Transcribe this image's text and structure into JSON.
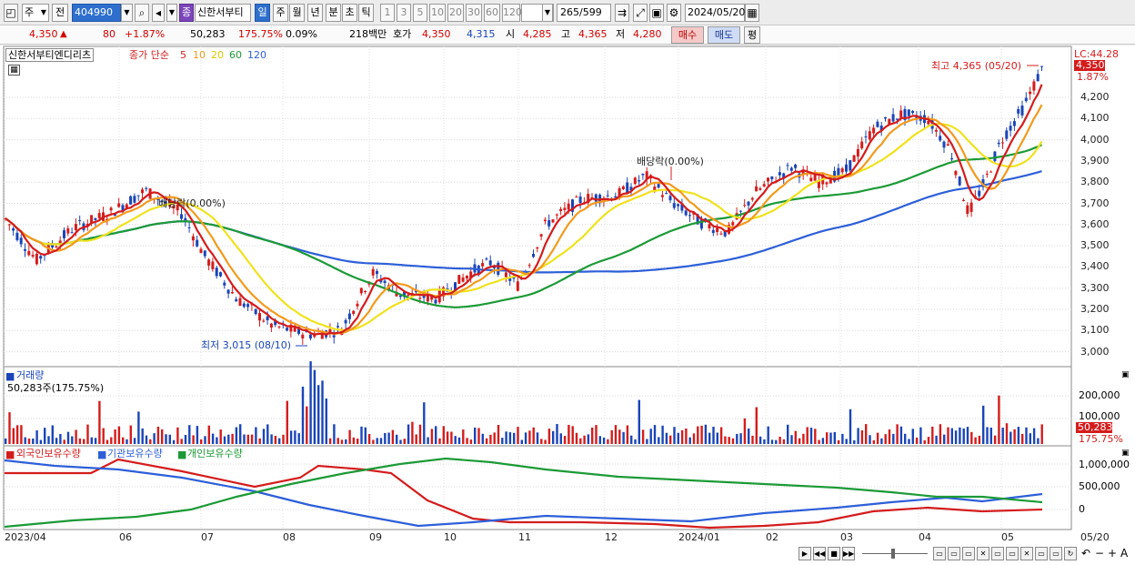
{
  "toolbar": {
    "period_type": "주",
    "prev_label": "전",
    "stock_code": "404990",
    "stock_badge": "종",
    "stock_name": "신한서부티",
    "period_buttons": [
      "일",
      "주",
      "월",
      "년",
      "분",
      "초",
      "틱"
    ],
    "interval_buttons": [
      "1",
      "3",
      "5",
      "10",
      "20",
      "30",
      "60",
      "120"
    ],
    "count_value": "265",
    "count_total": "/599",
    "date_value": "2024/05/20"
  },
  "quote": {
    "price": "4,350",
    "change_arrow": "▲",
    "change": "80",
    "change_pct": "+1.87%",
    "volume": "50,283",
    "volume_ratio": "175.75%",
    "turnover_ratio": "0.09%",
    "amount": "218백만",
    "ask_label": "호가",
    "ask_price": "4,350",
    "bid_price": "4,315",
    "open_label": "시",
    "open": "4,285",
    "high_label": "고",
    "high": "4,365",
    "low_label": "저",
    "low": "4,280",
    "buy_label": "매수",
    "sell_label": "매도",
    "extra_label": "평"
  },
  "price_panel": {
    "name": "신한서부티엔디리츠",
    "ma_title": "종가 단순",
    "ma_periods": [
      "5",
      "10",
      "20",
      "60",
      "120"
    ],
    "ma_colors": [
      "#d41c1c",
      "#f39a1d",
      "#f0e21e",
      "#1c9a36",
      "#2d5fd8"
    ],
    "lc_label": "LC:44.28",
    "current_price_badge": "4,350",
    "current_change_badge": "1.87%",
    "high_annotation": "최고 4,365 (05/20)",
    "low_annotation": "최저 3,015 (08/10)",
    "dividend_label_1": "배당락(0.00%)",
    "dividend_label_2": "배당락(0.00%)",
    "y_ticks": [
      "4,200",
      "4,100",
      "4,000",
      "3,900",
      "3,800",
      "3,700",
      "3,600",
      "3,500",
      "3,400",
      "3,300",
      "3,200",
      "3,100",
      "3,000"
    ]
  },
  "volume_panel": {
    "title": "거래량",
    "value_text": "50,283주(175.75%)",
    "y_ticks": [
      "200,000",
      "100,000"
    ],
    "badge_value": "50,283",
    "badge_pct": "175.75%"
  },
  "holdings_panel": {
    "series_labels": [
      "외국인보유수량",
      "기관보유수량",
      "개인보유수량"
    ],
    "series_colors": [
      "#d41c1c",
      "#2d5fd8",
      "#1c9a36"
    ],
    "y_ticks": [
      "1,000,000",
      "500,000",
      "0"
    ]
  },
  "x_axis": {
    "labels": [
      "2023/04",
      "06",
      "07",
      "08",
      "09",
      "10",
      "11",
      "12",
      "2024/01",
      "02",
      "03",
      "04",
      "05"
    ],
    "right_label": "05/20"
  },
  "colors": {
    "up": "#d41c1c",
    "down": "#1a45b8",
    "selected": "#2e6fcd"
  }
}
